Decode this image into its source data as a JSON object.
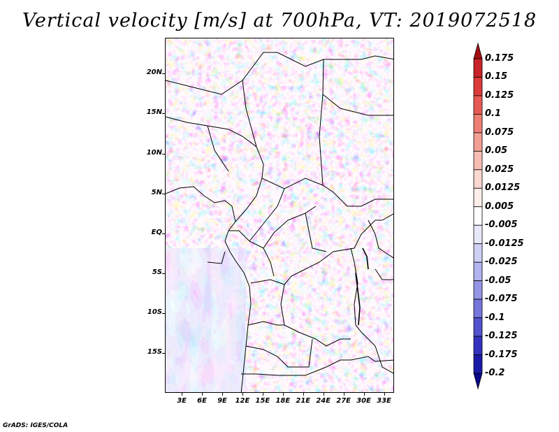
{
  "title": "Vertical velocity [m/s] at 700hPa, VT: 2019072518",
  "credit": "GrADS: IGES/COLA",
  "lat_labels": [
    "20N",
    "15N",
    "10N",
    "5N",
    "EQ",
    "5S",
    "10S",
    "15S"
  ],
  "lat_values": [
    20,
    15,
    10,
    5,
    0,
    -5,
    -10,
    -15
  ],
  "lon_labels": [
    "3E",
    "6E",
    "9E",
    "12E",
    "15E",
    "18E",
    "21E",
    "24E",
    "27E",
    "30E",
    "33E"
  ],
  "lon_values": [
    3,
    6,
    9,
    12,
    15,
    18,
    21,
    24,
    27,
    30,
    33
  ],
  "extent": {
    "lon_min": 0.5,
    "lon_max": 34.5,
    "lat_min": -20.0,
    "lat_max": 24.5
  },
  "colorbar": {
    "labels": [
      "0.175",
      "0.15",
      "0.125",
      "0.1",
      "0.075",
      "0.05",
      "0.025",
      "0.0125",
      "0.005",
      "-0.005",
      "-0.0125",
      "-0.025",
      "-0.05",
      "-0.075",
      "-0.1",
      "-0.125",
      "-0.175",
      "-0.2"
    ],
    "colors": [
      "#a50f15",
      "#c8222a",
      "#dc3b3b",
      "#e85a55",
      "#ef7f75",
      "#f39e92",
      "#f7bdb3",
      "#fbd8d0",
      "#fdeeea",
      "#ffffff",
      "#e8e8fb",
      "#cfcff6",
      "#b3b3f0",
      "#9595e6",
      "#7575dc",
      "#5252cf",
      "#3232bf",
      "#1a1aa8",
      "#08088a"
    ]
  }
}
